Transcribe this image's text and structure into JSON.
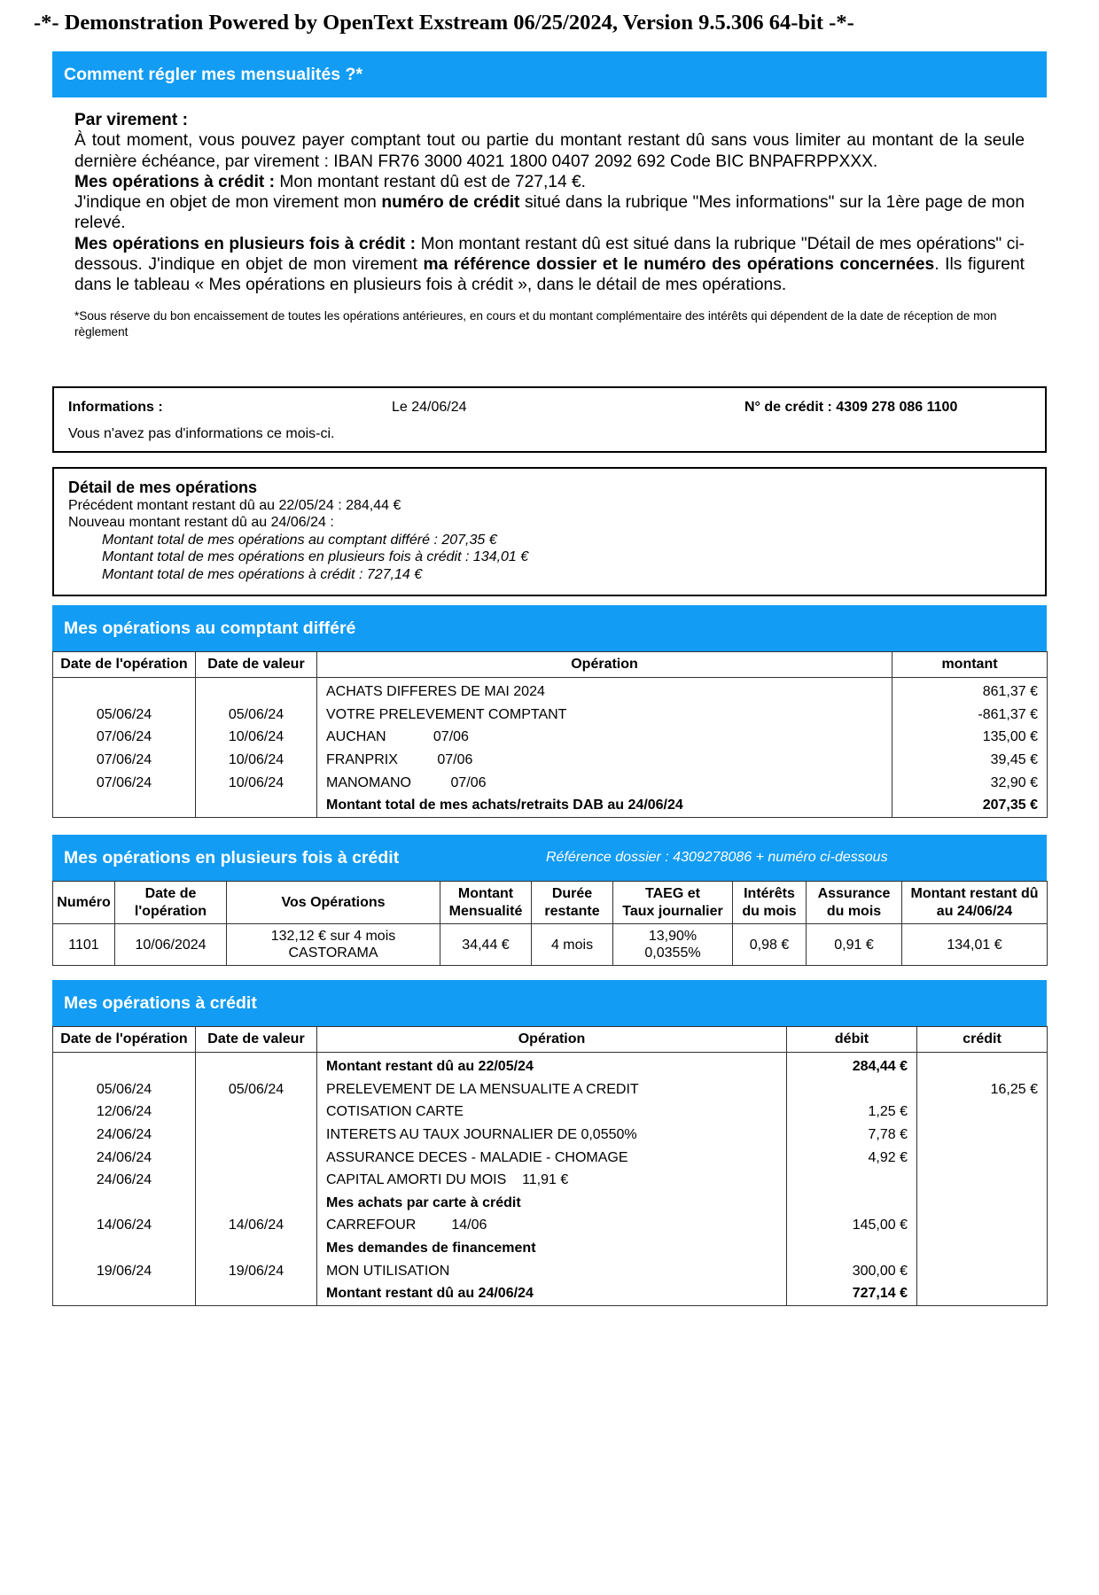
{
  "header": {
    "demo": "-*- Demonstration Powered by OpenText Exstream 06/25/2024, Version 9.5.306 64-bit -*-"
  },
  "payment": {
    "title": "Comment régler mes mensualités ?*",
    "paragraphs": [
      [
        {
          "text": "Par virement :",
          "bold": true
        }
      ],
      [
        {
          "text": "À tout moment, vous pouvez payer comptant tout ou partie du montant restant dû sans vous limiter au montant de la seule dernière échéance, par virement : IBAN FR76 3000 4021 1800 0407 2092 692 Code BIC BNPAFRPPXXX."
        }
      ],
      [
        {
          "text": "Mes opérations à crédit :",
          "bold": true
        },
        {
          "text": " Mon montant restant dû est de 727,14 €."
        }
      ],
      [
        {
          "text": "J'indique en objet de mon virement mon "
        },
        {
          "text": "numéro de crédit",
          "bold": true
        },
        {
          "text": " situé dans la rubrique \"Mes informations\" sur la 1ère page de mon relevé."
        }
      ],
      [
        {
          "text": "Mes opérations en plusieurs fois à crédit :",
          "bold": true
        },
        {
          "text": " Mon montant restant dû est situé dans la rubrique \"Détail de mes opérations\" ci-dessous. J'indique en objet de mon virement "
        },
        {
          "text": "ma référence dossier et le numéro des opérations concernées",
          "bold": true
        },
        {
          "text": ".  Ils figurent dans le tableau « Mes opérations en plusieurs fois à crédit », dans le détail de mes opérations."
        }
      ]
    ],
    "footnote": "*Sous réserve du bon encaissement de toutes les opérations antérieures, en cours et du montant complémentaire des intérêts qui dépendent de la date de réception de mon règlement"
  },
  "info": {
    "label": "Informations :",
    "date": "Le 24/06/24",
    "credit": "N° de crédit : 4309 278 086 1100",
    "message": "Vous n'avez pas d'informations ce mois-ci."
  },
  "detail": {
    "title": "Détail de mes opérations",
    "lines": [
      "Précédent montant restant dû au 22/05/24 : 284,44 €",
      "Nouveau montant restant dû au 24/06/24 :"
    ],
    "italic_lines": [
      "Montant total de mes opérations au comptant différé : 207,35 €",
      "Montant total de mes opérations en plusieurs fois à crédit : 134,01 €",
      "Montant total de mes opérations à crédit : 727,14 €"
    ]
  },
  "deferred": {
    "title": "Mes opérations au comptant différé",
    "headers": [
      "Date de l'opération",
      "Date de valeur",
      "Opération",
      "montant"
    ],
    "rows": [
      [
        null,
        null,
        "ACHATS DIFFERES DE MAI 2024",
        "861,37 €"
      ],
      [
        "05/06/24",
        "05/06/24",
        "VOTRE PRELEVEMENT COMPTANT",
        "-861,37 €"
      ],
      [
        "07/06/24",
        "10/06/24",
        "AUCHAN            07/06",
        "135,00 €"
      ],
      [
        "07/06/24",
        "10/06/24",
        "FRANPRIX          07/06",
        "39,45 €"
      ],
      [
        "07/06/24",
        "10/06/24",
        "MANOMANO          07/06",
        "32,90 €"
      ],
      [
        null,
        null,
        "Montant total de mes achats/retraits DAB au 24/06/24",
        "207,35 €"
      ]
    ],
    "bold_rows": [
      5
    ]
  },
  "installments": {
    "title": "Mes opérations en plusieurs fois à crédit",
    "reference": "Référence dossier :  4309278086 + numéro ci-dessous",
    "headers": [
      "Numéro",
      "Date de\nl'opération",
      "Vos Opérations",
      "Montant\nMensualité",
      "Durée\nrestante",
      "TAEG et\nTaux journalier",
      "Intérêts\ndu mois",
      "Assurance\ndu mois",
      "Montant restant dû\nau 24/06/24"
    ],
    "rows": [
      [
        "1101",
        "10/06/2024",
        "132,12 € sur 4 mois\nCASTORAMA",
        "34,44 €",
        "4 mois",
        "13,90%\n0,0355%",
        "0,98 €",
        "0,91 €",
        "134,01 €"
      ]
    ]
  },
  "credit": {
    "title": "Mes opérations à crédit",
    "headers": [
      "Date de l'opération",
      "Date de valeur",
      "Opération",
      "débit",
      "crédit"
    ],
    "rows": [
      [
        null,
        null,
        "Montant restant dû au 22/05/24",
        "284,44 €",
        null
      ],
      [
        "05/06/24",
        "05/06/24",
        "PRELEVEMENT DE LA MENSUALITE A CREDIT",
        null,
        "16,25 €"
      ],
      [
        "12/06/24",
        null,
        "COTISATION CARTE",
        "1,25 €",
        null
      ],
      [
        "24/06/24",
        null,
        "INTERETS AU TAUX JOURNALIER DE 0,0550%",
        "7,78 €",
        null
      ],
      [
        "24/06/24",
        null,
        "ASSURANCE DECES - MALADIE - CHOMAGE",
        "4,92 €",
        null
      ],
      [
        "24/06/24",
        null,
        "CAPITAL AMORTI DU MOIS    11,91 €",
        null,
        null
      ],
      [
        null,
        null,
        "Mes achats par carte à crédit",
        null,
        null
      ],
      [
        "14/06/24",
        "14/06/24",
        "CARREFOUR         14/06",
        "145,00 €",
        null
      ],
      [
        null,
        null,
        "Mes demandes de financement",
        null,
        null
      ],
      [
        "19/06/24",
        "19/06/24",
        "MON UTILISATION",
        "300,00 €",
        null
      ],
      [
        null,
        null,
        "Montant restant dû au 24/06/24",
        "727,14 €",
        null
      ]
    ],
    "bold_rows": [
      0,
      6,
      8,
      10
    ]
  }
}
